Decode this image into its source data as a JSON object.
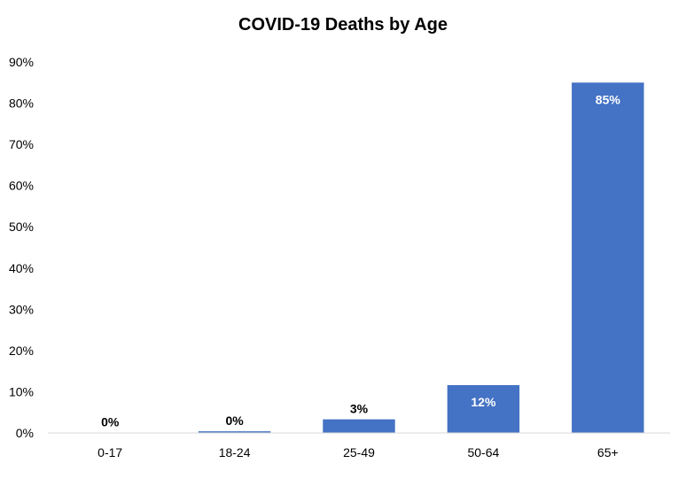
{
  "chart_data": {
    "type": "bar",
    "title": "COVID-19 Deaths by Age",
    "categories": [
      "0-17",
      "18-24",
      "25-49",
      "50-64",
      "65+"
    ],
    "values": [
      0.1,
      0.4,
      3.3,
      11.6,
      85.0
    ],
    "data_labels": [
      "0%",
      "0%",
      "3%",
      "12%",
      "85%"
    ],
    "ylim": [
      0,
      90
    ],
    "yticks": [
      0,
      10,
      20,
      30,
      40,
      50,
      60,
      70,
      80,
      90
    ],
    "ytick_labels": [
      "0%",
      "10%",
      "20%",
      "30%",
      "40%",
      "50%",
      "60%",
      "70%",
      "80%",
      "90%"
    ],
    "grid": false,
    "legend": "none",
    "bar_color": "#4472C4",
    "label_color_inside": "#FFFFFF",
    "label_color_outside": "#000000"
  }
}
